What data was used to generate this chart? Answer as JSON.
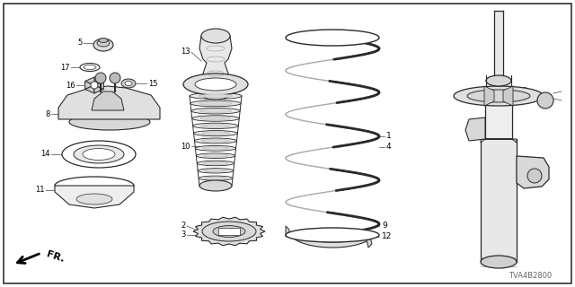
{
  "bg_color": "#ffffff",
  "border_color": "#333333",
  "diagram_code": "TVA4B2800",
  "lc": "#333333"
}
